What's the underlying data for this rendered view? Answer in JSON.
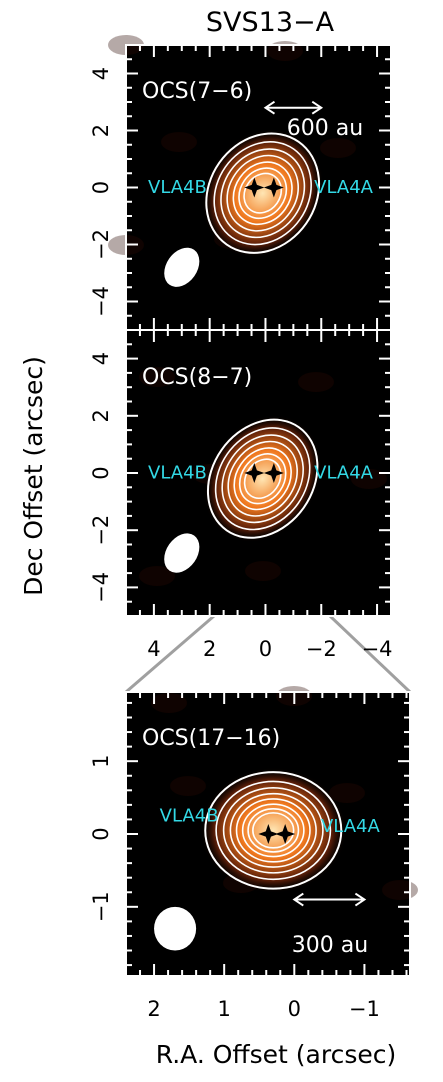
{
  "figure": {
    "title": "SVS13−A",
    "ylabel": "Dec Offset (arcsec)",
    "xlabel": "R.A. Offset (arcsec)"
  },
  "colors": {
    "background": "#000000",
    "frame": "#ffffff",
    "contour": "#ffffff",
    "source_label": "#33d9e6",
    "connector": "#a0a0a0",
    "emission_core": "#ffe6b4",
    "emission_mid": "#f0781e",
    "emission_edge": "#5a1e08"
  },
  "chart_data": [
    {
      "type": "contour",
      "panel": "OCS(7−6)",
      "molecule_label": "OCS(7−6)",
      "xlim": [
        5,
        -4.5
      ],
      "ylim": [
        -5,
        5
      ],
      "xticks": [
        4,
        2,
        0,
        -2,
        -4
      ],
      "yticks": [
        4,
        2,
        0,
        -2,
        -4
      ],
      "ytick_labels": [
        "4",
        "2",
        "0",
        "−2",
        "−4"
      ],
      "xtick_labels": [],
      "sources": [
        {
          "name": "VLA4B",
          "x": 0.4,
          "y": 0.0
        },
        {
          "name": "VLA4A",
          "x": -0.3,
          "y": 0.0
        }
      ],
      "emission": {
        "center": [
          0.1,
          -0.2
        ],
        "semi_axes": [
          1.9,
          2.2
        ],
        "pa": 35
      },
      "contour_scales": [
        1.0,
        0.86,
        0.74,
        0.63,
        0.52,
        0.42,
        0.33
      ],
      "beam": {
        "x": 3.0,
        "y": -2.8,
        "semi_axes": [
          0.55,
          0.75
        ],
        "pa": 35
      },
      "scale_bar": {
        "x0": 0.0,
        "x1": -2.0,
        "y": 2.8,
        "label": "600 au"
      }
    },
    {
      "type": "contour",
      "panel": "OCS(8−7)",
      "molecule_label": "OCS(8−7)",
      "xlim": [
        5,
        -4.5
      ],
      "ylim": [
        -5,
        5
      ],
      "xticks": [
        4,
        2,
        0,
        -2,
        -4
      ],
      "yticks": [
        4,
        2,
        0,
        -2,
        -4
      ],
      "ytick_labels": [
        "4",
        "2",
        "0",
        "−2",
        "−4"
      ],
      "xtick_labels": [
        "4",
        "2",
        "0",
        "−2",
        "−4"
      ],
      "sources": [
        {
          "name": "VLA4B",
          "x": 0.4,
          "y": 0.0
        },
        {
          "name": "VLA4A",
          "x": -0.3,
          "y": 0.0
        }
      ],
      "emission": {
        "center": [
          0.1,
          -0.2
        ],
        "semi_axes": [
          1.8,
          2.2
        ],
        "pa": 35
      },
      "contour_scales": [
        1.0,
        0.86,
        0.74,
        0.63,
        0.52,
        0.42,
        0.33
      ],
      "beam": {
        "x": 3.0,
        "y": -2.8,
        "semi_axes": [
          0.55,
          0.75
        ],
        "pa": 35
      },
      "scale_bar": null
    },
    {
      "type": "contour",
      "panel": "OCS(17−16)",
      "molecule_label": "OCS(17−16)",
      "xlim": [
        2.4,
        -1.65
      ],
      "ylim": [
        -1.95,
        1.95
      ],
      "xticks": [
        2,
        1,
        0,
        -1
      ],
      "yticks": [
        1,
        0,
        -1
      ],
      "ytick_labels": [
        "1",
        "0",
        "−1"
      ],
      "xtick_labels": [
        "2",
        "1",
        "0",
        "−1"
      ],
      "sources": [
        {
          "name": "VLA4B",
          "x": 0.37,
          "y": 0.0
        },
        {
          "name": "VLA4A",
          "x": 0.13,
          "y": 0.0
        }
      ],
      "source_label_pos": [
        {
          "name": "VLA4B",
          "x": 1.5,
          "y": 0.25
        },
        {
          "name": "VLA4A",
          "x": -0.8,
          "y": 0.1
        }
      ],
      "emission": {
        "center": [
          0.3,
          0.05
        ],
        "semi_axes": [
          0.97,
          0.8
        ],
        "pa": 0
      },
      "contour_scales": [
        1.0,
        0.84,
        0.73,
        0.63,
        0.54,
        0.45,
        0.37,
        0.3
      ],
      "beam": {
        "x": 1.7,
        "y": -1.3,
        "semi_axes": [
          0.3,
          0.3
        ],
        "pa": 0
      },
      "scale_bar": {
        "x0": 0.0,
        "x1": -1.0,
        "y": -0.9,
        "label": "300 au"
      }
    }
  ]
}
